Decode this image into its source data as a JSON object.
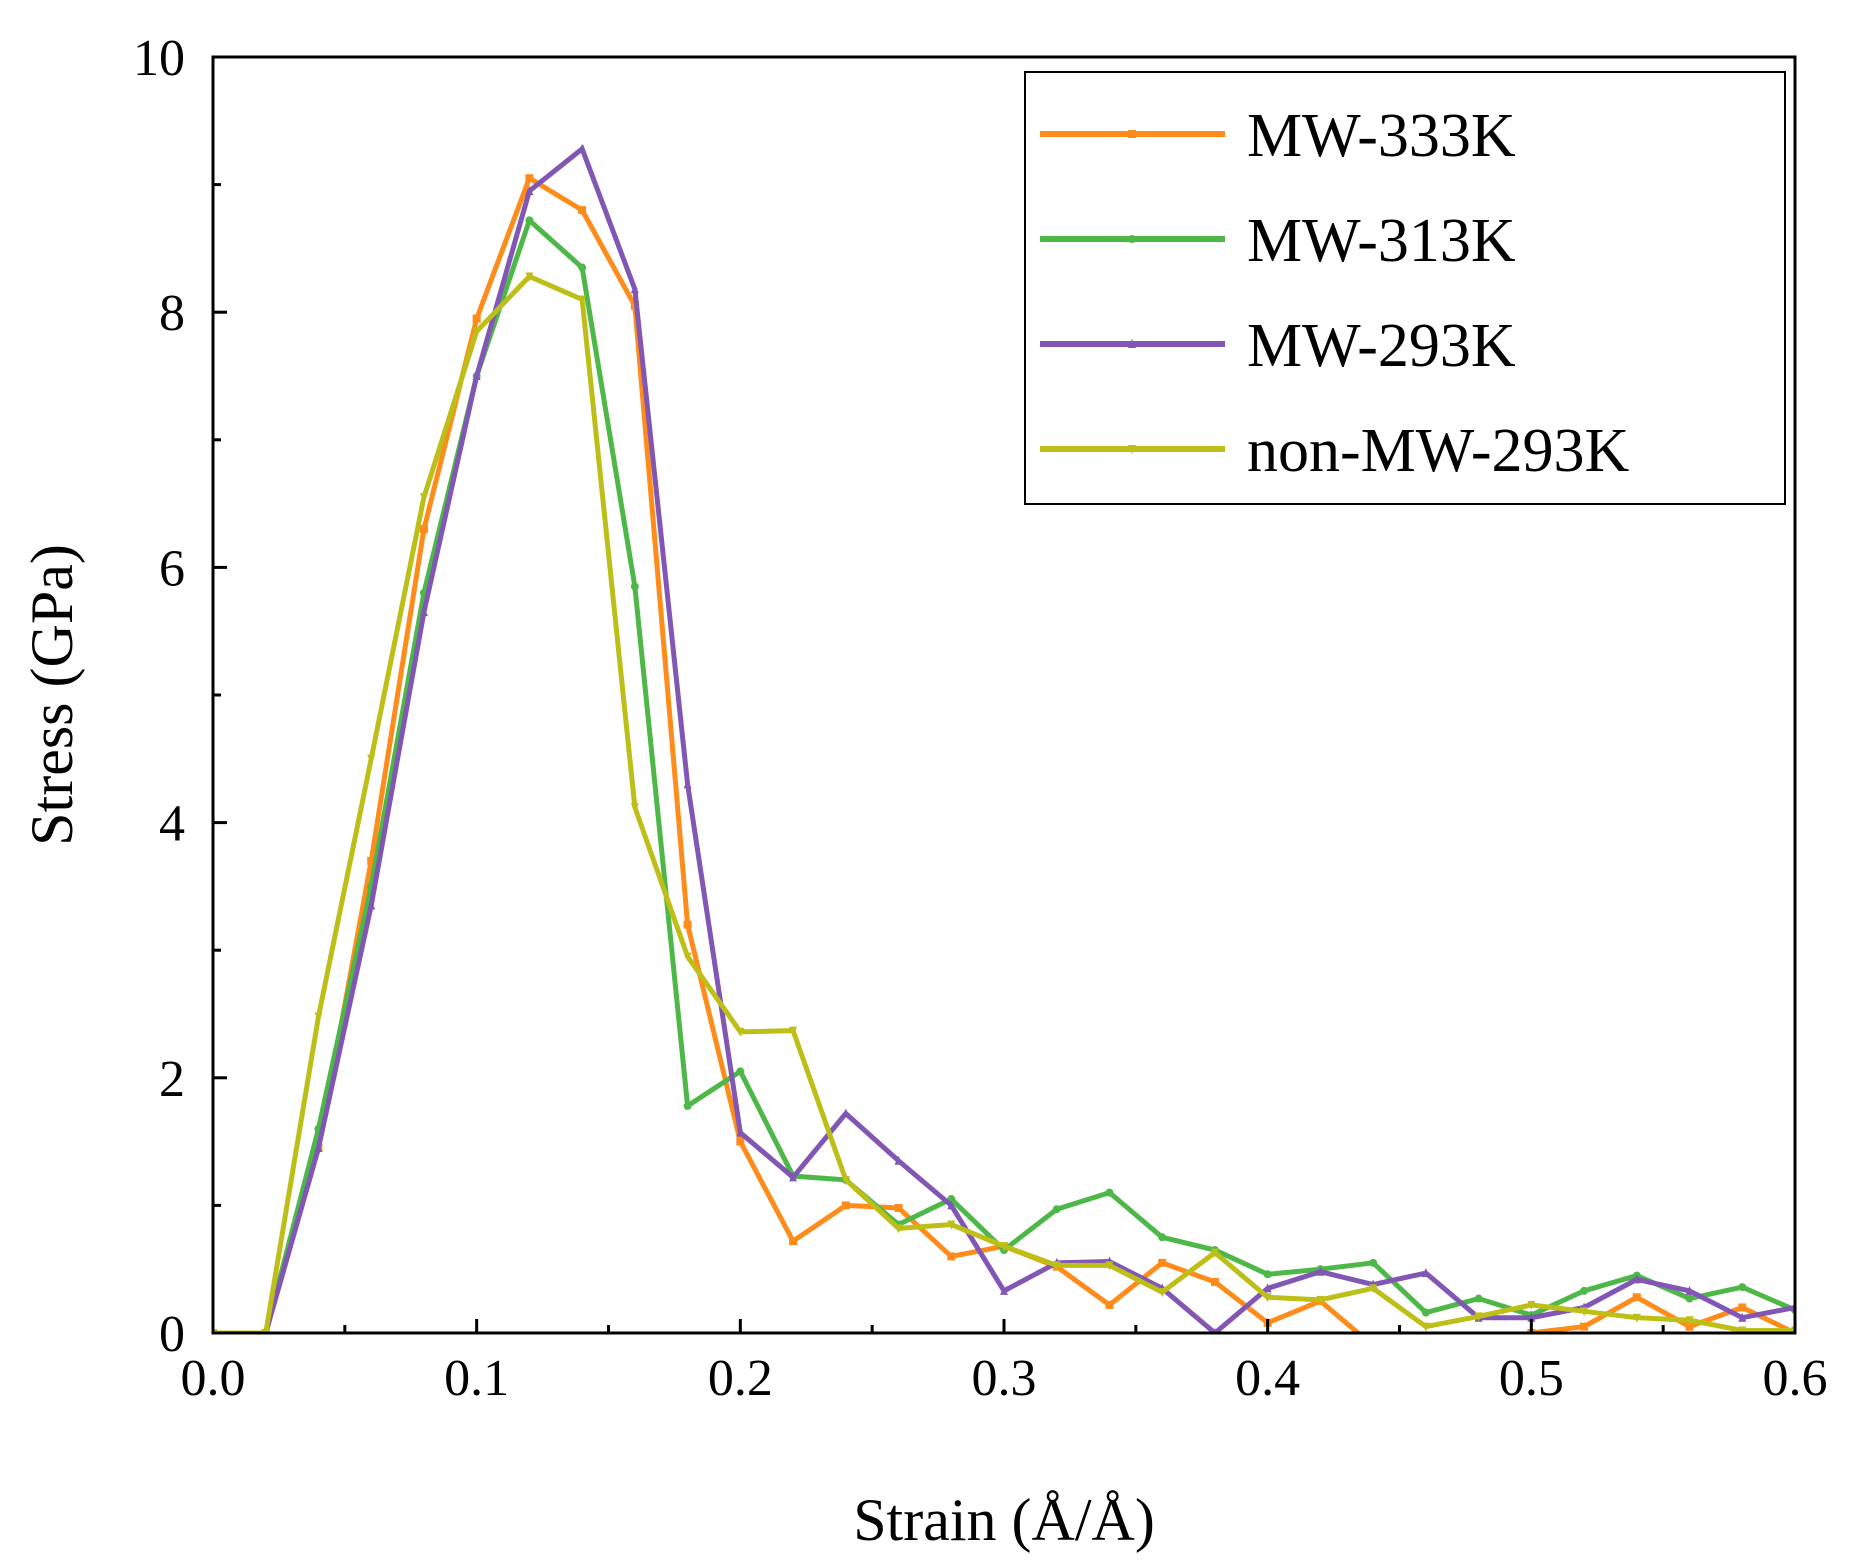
{
  "chart_data": {
    "type": "line",
    "xlabel": "Strain (Å/Å)",
    "ylabel": "Stress (GPa)",
    "xlim": [
      0.0,
      0.6
    ],
    "ylim": [
      0,
      10
    ],
    "x_ticks": [
      "0.0",
      "0.1",
      "0.2",
      "0.3",
      "0.4",
      "0.5",
      "0.6"
    ],
    "y_ticks": [
      "0",
      "2",
      "4",
      "6",
      "8",
      "10"
    ],
    "x_minor_step": 0.05,
    "y_minor_step": 1,
    "grid": false,
    "legend_position": "top-right",
    "x": [
      0.0,
      0.02,
      0.04,
      0.06,
      0.08,
      0.1,
      0.12,
      0.14,
      0.16,
      0.18,
      0.2,
      0.22,
      0.24,
      0.26,
      0.28,
      0.3,
      0.32,
      0.34,
      0.36,
      0.38,
      0.4,
      0.42,
      0.44,
      0.46,
      0.48,
      0.5,
      0.52,
      0.54,
      0.56,
      0.58,
      0.6
    ],
    "series": [
      {
        "name": "MW-333K",
        "color": "#FF8C1A",
        "marker": "square",
        "values": [
          0.0,
          0.0,
          1.45,
          3.7,
          6.3,
          7.95,
          9.05,
          8.8,
          8.05,
          3.2,
          1.5,
          0.72,
          1.0,
          0.98,
          0.6,
          0.68,
          0.52,
          0.22,
          0.55,
          0.4,
          0.08,
          0.25,
          -0.1,
          -0.2,
          -0.1,
          0.0,
          0.05,
          0.28,
          0.05,
          0.2,
          0.0
        ]
      },
      {
        "name": "MW-313K",
        "color": "#4DB848",
        "marker": "circle",
        "values": [
          0.0,
          0.0,
          1.6,
          3.5,
          5.8,
          7.5,
          8.72,
          8.35,
          5.85,
          1.78,
          2.05,
          1.23,
          1.2,
          0.85,
          1.05,
          0.65,
          0.97,
          1.1,
          0.75,
          0.65,
          0.46,
          0.5,
          0.55,
          0.16,
          0.27,
          0.14,
          0.33,
          0.45,
          0.27,
          0.36,
          0.18
        ]
      },
      {
        "name": "MW-293K",
        "color": "#8156B4",
        "marker": "triangle-up",
        "values": [
          0.0,
          0.0,
          1.45,
          3.35,
          5.65,
          7.5,
          8.95,
          9.28,
          8.18,
          4.3,
          1.57,
          1.22,
          1.72,
          1.35,
          1.0,
          0.33,
          0.55,
          0.56,
          0.35,
          0.0,
          0.35,
          0.48,
          0.38,
          0.47,
          0.12,
          0.12,
          0.2,
          0.42,
          0.33,
          0.12,
          0.2
        ]
      },
      {
        "name": "non-MW-293K",
        "color": "#BEBE18",
        "marker": "triangle-down",
        "values": [
          0.0,
          0.0,
          2.48,
          4.5,
          6.55,
          7.85,
          8.28,
          8.1,
          4.12,
          2.95,
          2.36,
          2.37,
          1.2,
          0.82,
          0.85,
          0.68,
          0.53,
          0.53,
          0.32,
          0.63,
          0.28,
          0.26,
          0.35,
          0.05,
          0.13,
          0.22,
          0.17,
          0.12,
          0.1,
          0.02,
          0.02
        ]
      }
    ]
  }
}
